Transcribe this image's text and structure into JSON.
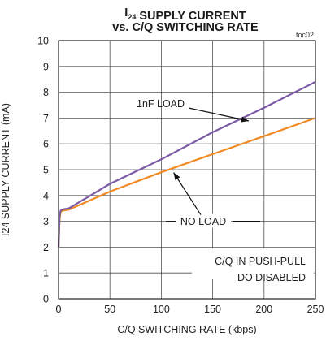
{
  "chart_data": {
    "type": "line",
    "title_lines": [
      {
        "parts": [
          {
            "text": "I",
            "sub": false
          },
          {
            "text": "24",
            "sub": true
          },
          {
            "text": " SUPPLY CURRENT",
            "sub": false
          }
        ]
      },
      {
        "parts": [
          {
            "text": "vs. C/Q SWITCHING RATE",
            "sub": false
          }
        ]
      }
    ],
    "figure_code": "toc02",
    "xlabel": "C/Q SWITCHING RATE (kbps)",
    "ylabel": "I24 SUPPLY CURRENT (mA)",
    "xlim": [
      0,
      250
    ],
    "ylim": [
      0,
      10
    ],
    "x_ticks": [
      0,
      50,
      100,
      150,
      200,
      250
    ],
    "y_ticks": [
      0,
      1,
      2,
      3,
      4,
      5,
      6,
      7,
      8,
      9,
      10
    ],
    "grid": true,
    "series": [
      {
        "name": "1nF LOAD",
        "color": "#7b5aa6",
        "x": [
          0,
          1,
          2,
          3,
          5,
          10,
          50,
          100,
          150,
          200,
          250
        ],
        "y": [
          2.0,
          3.2,
          3.4,
          3.45,
          3.47,
          3.5,
          4.45,
          5.4,
          6.45,
          7.4,
          8.4
        ]
      },
      {
        "name": "NO LOAD",
        "color": "#f08a24",
        "x": [
          0,
          1,
          2,
          3,
          5,
          10,
          50,
          100,
          150,
          200,
          250
        ],
        "y": [
          2.0,
          3.1,
          3.35,
          3.4,
          3.42,
          3.45,
          4.15,
          4.9,
          5.6,
          6.3,
          7.0
        ]
      }
    ],
    "annotations": [
      {
        "text": "1nF LOAD"
      },
      {
        "text": "NO LOAD"
      }
    ],
    "note_lines": [
      "C/Q IN PUSH-PULL",
      "DO DISABLED"
    ]
  }
}
